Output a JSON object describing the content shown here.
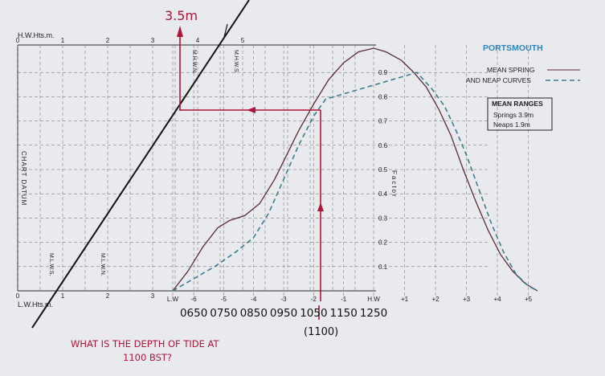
{
  "chart_data": {
    "type": "line",
    "title": "PORTSMOUTH",
    "legend": {
      "placement": "top-right",
      "items": [
        {
          "label": "MEAN SPRING",
          "style": "solid",
          "color": "#5a2a3c"
        },
        {
          "label": "AND NEAP CURVES",
          "style": "dashed",
          "color": "#3d7d8e"
        }
      ]
    },
    "mean_ranges": {
      "title": "MEAN RANGES",
      "springs": "Springs  3.9m",
      "neaps": "Neaps   1.9m"
    },
    "height_axis": {
      "top_label": "H.W.Hts.m.",
      "bottom_label": "L.W.Hts.m.",
      "ticks": [
        "0",
        "1",
        "2",
        "3",
        "4",
        "5"
      ],
      "range_m": [
        0,
        5
      ],
      "annotations": [
        "M.H.W.N.",
        "M.H.W.S.",
        "M.L.W.S.",
        "M.L.W.N."
      ]
    },
    "chart_datum_label": "CHART DATUM",
    "factor_axis": {
      "label": "Factor",
      "ticks": [
        "0.1",
        "0.2",
        "0.3",
        "0.4",
        "0.5",
        "0.6",
        "0.7",
        "0.8",
        "0.9"
      ],
      "range": [
        0,
        1
      ]
    },
    "time_axis": {
      "labels": [
        "L.W",
        "-6",
        "-5",
        "-4",
        "-3",
        "-2",
        "-1",
        "H.W",
        "+1",
        "+2",
        "+3",
        "+4",
        "+5"
      ],
      "values": [
        -6.7,
        -6,
        -5,
        -4,
        -3,
        -2,
        -1,
        0,
        1,
        2,
        3,
        4,
        5
      ],
      "range_hours": [
        -6.7,
        5.3
      ]
    },
    "series": [
      {
        "name": "MEAN SPRING",
        "style": "solid",
        "points": [
          [
            -6.7,
            0
          ],
          [
            -6.2,
            0.08
          ],
          [
            -5.7,
            0.18
          ],
          [
            -5.2,
            0.26
          ],
          [
            -4.8,
            0.29
          ],
          [
            -4.3,
            0.31
          ],
          [
            -3.8,
            0.36
          ],
          [
            -3.3,
            0.46
          ],
          [
            -2.9,
            0.56
          ],
          [
            -2.5,
            0.66
          ],
          [
            -2.0,
            0.77
          ],
          [
            -1.5,
            0.87
          ],
          [
            -1.0,
            0.94
          ],
          [
            -0.5,
            0.985
          ],
          [
            0,
            1.0
          ],
          [
            0.4,
            0.985
          ],
          [
            0.9,
            0.95
          ],
          [
            1.3,
            0.9
          ],
          [
            1.7,
            0.84
          ],
          [
            2.1,
            0.75
          ],
          [
            2.5,
            0.64
          ],
          [
            2.9,
            0.5
          ],
          [
            3.3,
            0.37
          ],
          [
            3.7,
            0.25
          ],
          [
            4.1,
            0.15
          ],
          [
            4.5,
            0.08
          ],
          [
            4.9,
            0.03
          ],
          [
            5.3,
            0
          ]
        ]
      },
      {
        "name": "NEAP",
        "style": "dashed",
        "points": [
          [
            -6.7,
            0
          ],
          [
            -6.0,
            0.05
          ],
          [
            -5.3,
            0.1
          ],
          [
            -4.6,
            0.16
          ],
          [
            -4.0,
            0.22
          ],
          [
            -3.5,
            0.32
          ],
          [
            -3.0,
            0.46
          ],
          [
            -2.5,
            0.6
          ],
          [
            -2.0,
            0.72
          ],
          [
            -1.6,
            0.79
          ],
          [
            1.4,
            0.9
          ],
          [
            1.9,
            0.83
          ],
          [
            2.3,
            0.76
          ],
          [
            2.7,
            0.65
          ],
          [
            3.0,
            0.56
          ],
          [
            3.4,
            0.42
          ],
          [
            3.8,
            0.28
          ],
          [
            4.2,
            0.16
          ],
          [
            4.6,
            0.07
          ],
          [
            5.0,
            0.02
          ],
          [
            5.3,
            0
          ]
        ]
      }
    ],
    "annotations": {
      "height_result": "3.5m",
      "clock_times": [
        "0650",
        "0750",
        "0850",
        "0950",
        "1050",
        "1150",
        "1250"
      ],
      "target_time": "(1100)",
      "question_line1": "WHAT IS THE DEPTH OF TIDE AT",
      "question_line2": "1100 BST?"
    }
  }
}
